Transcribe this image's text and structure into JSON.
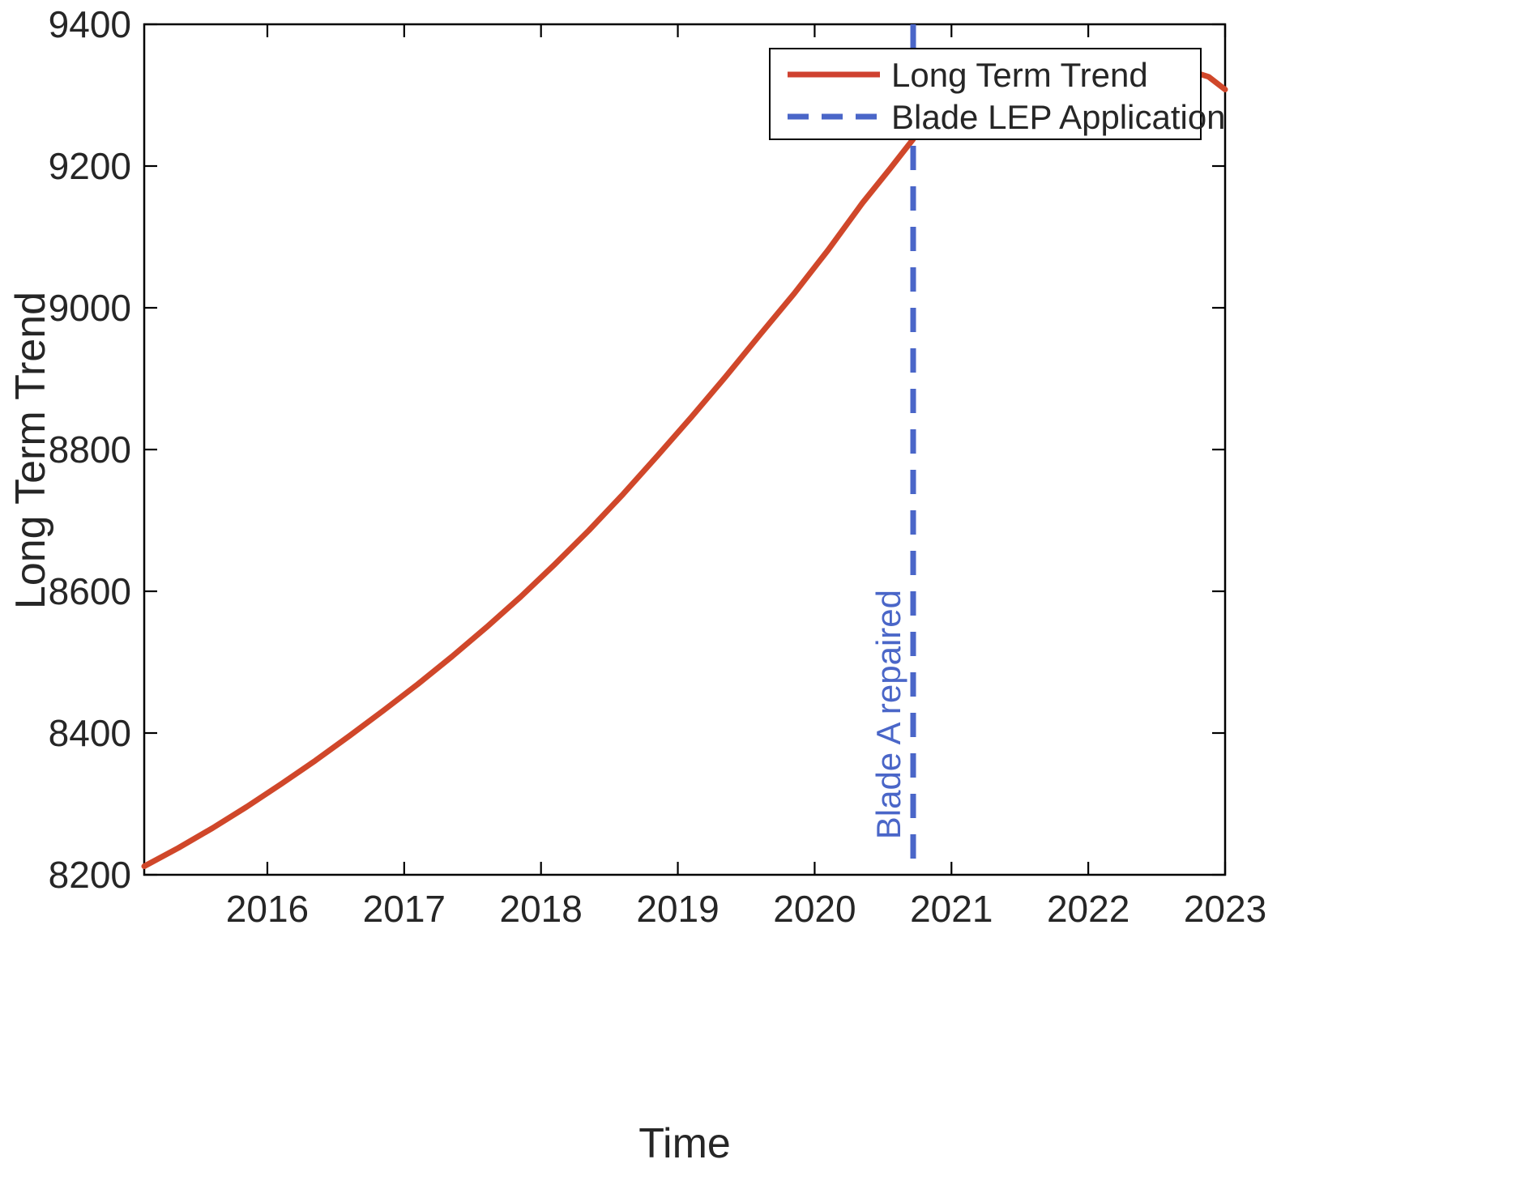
{
  "figure": {
    "background": "#ffffff",
    "axis_box_color": "#000000",
    "text_color": "#262626"
  },
  "chart_data": {
    "type": "line",
    "title": "",
    "xlabel": "Time",
    "ylabel": "Long Term Trend",
    "xlim": [
      2015.1,
      2023
    ],
    "ylim": [
      8200,
      9400
    ],
    "xticks": [
      2016,
      2017,
      2018,
      2019,
      2020,
      2021,
      2022,
      2023
    ],
    "yticks": [
      8200,
      8400,
      8600,
      8800,
      9000,
      9200,
      9400
    ],
    "grid": false,
    "legend": {
      "position": "top-right",
      "entries": [
        {
          "label": "Long Term Trend",
          "color": "#cf4130",
          "style": "solid"
        },
        {
          "label": "Blade LEP Application",
          "color": "#4a66c8",
          "style": "dashed"
        }
      ]
    },
    "series": [
      {
        "name": "Long Term Trend",
        "type": "line",
        "color": "#d0472a",
        "width": 7,
        "segments": [
          {
            "x": [
              2015.1,
              2015.35,
              2015.6,
              2015.85,
              2016.1,
              2016.35,
              2016.6,
              2016.85,
              2017.1,
              2017.35,
              2017.6,
              2017.85,
              2018.1,
              2018.35,
              2018.6,
              2018.85,
              2019.1,
              2019.35,
              2019.6,
              2019.85,
              2020.1,
              2020.35,
              2020.55,
              2020.72
            ],
            "y": [
              8212,
              8238,
              8266,
              8296,
              8328,
              8361,
              8396,
              8432,
              8469,
              8508,
              8549,
              8592,
              8638,
              8686,
              8737,
              8791,
              8846,
              8903,
              8962,
              9020,
              9082,
              9148,
              9196,
              9238
            ]
          },
          {
            "x": [
              2022.78,
              2022.88,
              2023.0
            ],
            "y": [
              9332,
              9326,
              9308
            ]
          }
        ]
      },
      {
        "name": "Blade LEP Application",
        "type": "vline",
        "color": "#4a66c8",
        "width": 7,
        "dash": [
          30,
          20
        ],
        "x": 2020.72
      }
    ],
    "annotations": [
      {
        "text": "Blade A repaired",
        "x": 2020.72,
        "y_bottom": 8250,
        "rotation": -90,
        "color": "#4a66c8"
      }
    ]
  }
}
